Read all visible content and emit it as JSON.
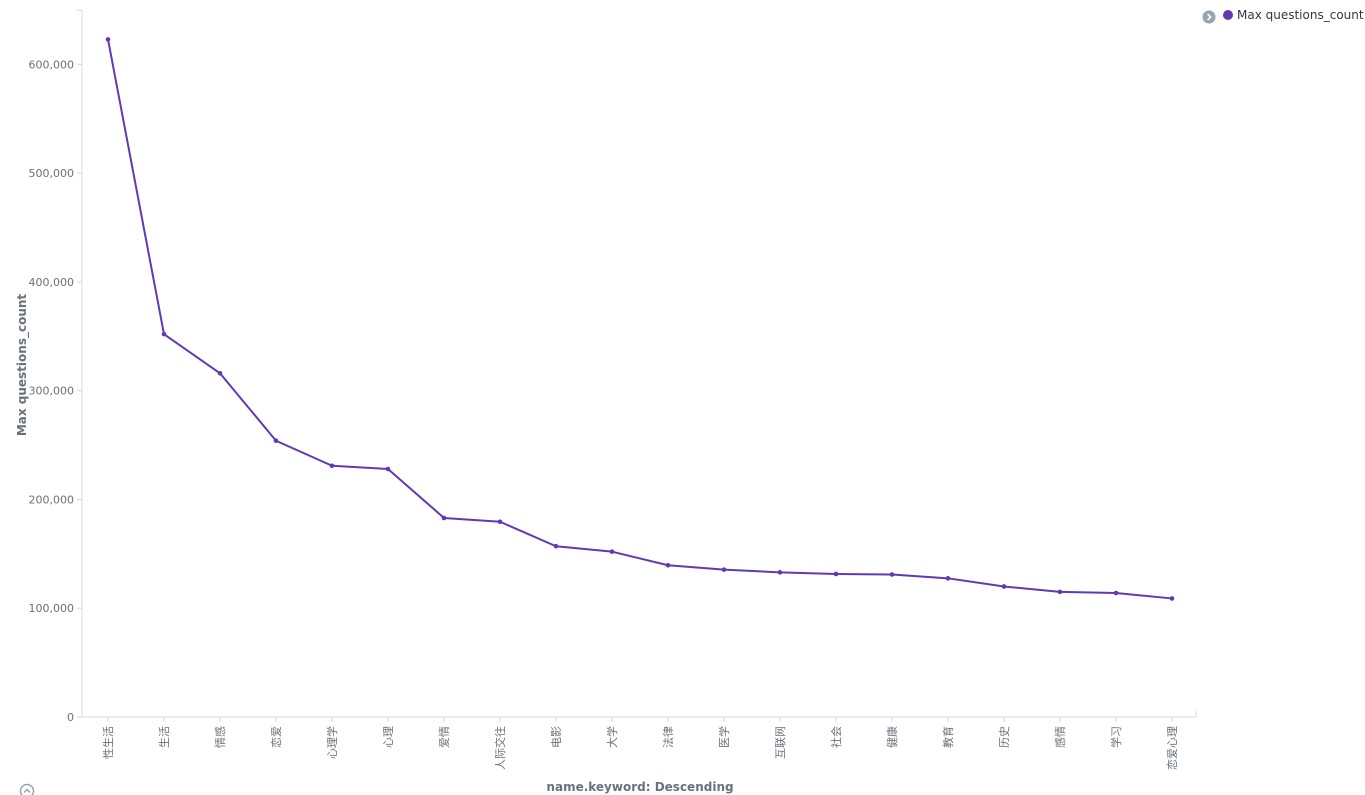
{
  "chart_data": {
    "type": "line",
    "title": "",
    "xlabel": "name.keyword: Descending",
    "ylabel": "Max questions_count",
    "ylim": [
      0,
      650000
    ],
    "yticks": [
      0,
      100000,
      200000,
      300000,
      400000,
      500000,
      600000
    ],
    "ytick_labels": [
      "0",
      "100,000",
      "200,000",
      "300,000",
      "400,000",
      "500,000",
      "600,000"
    ],
    "grid": false,
    "legend_position": "top-right",
    "categories": [
      "性生活",
      "生活",
      "情感",
      "恋爱",
      "心理学",
      "心理",
      "爱情",
      "人际交往",
      "电影",
      "大学",
      "法律",
      "医学",
      "互联网",
      "社会",
      "健康",
      "教育",
      "历史",
      "感情",
      "学习",
      "恋爱心理"
    ],
    "series": [
      {
        "name": "Max questions_count",
        "color": "#6039b3",
        "values": [
          623000,
          352000,
          316000,
          254000,
          231000,
          228000,
          183000,
          179500,
          157000,
          152000,
          139500,
          135500,
          133000,
          131500,
          131000,
          127500,
          120000,
          115000,
          114000,
          109000
        ]
      }
    ]
  },
  "legend": {
    "toggle_icon": "chevron-right-circle-icon",
    "label": "Max questions_count",
    "color": "#6039b3"
  },
  "options_icon": "chevron-up-circle-icon"
}
